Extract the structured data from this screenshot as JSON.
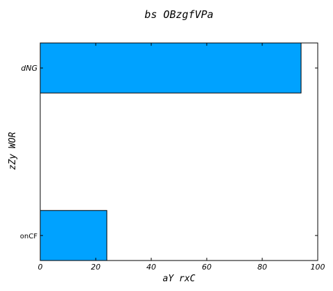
{
  "chart_data": {
    "type": "bar",
    "orientation": "horizontal",
    "title": "bs OBzgfVPa",
    "xlabel": "aY rxC",
    "ylabel": "zZy  WOR",
    "categories": [
      "onCF",
      "dNG"
    ],
    "values": [
      24,
      94
    ],
    "xlim": [
      0,
      100
    ],
    "xticks": [
      0,
      20,
      40,
      60,
      80,
      100
    ],
    "grid": false,
    "legend": "none",
    "bar_color": "#00a2ff",
    "edge_color": "#000000"
  }
}
